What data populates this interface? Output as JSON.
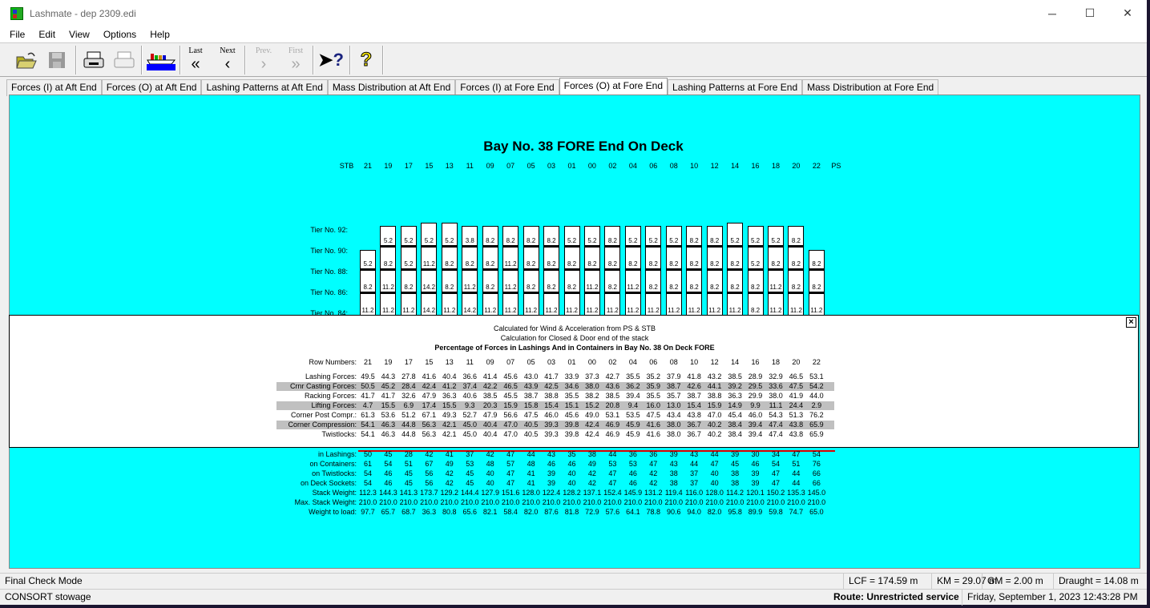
{
  "window": {
    "title": "Lashmate - dep 2309.edi",
    "minimize": "─",
    "maximize": "☐",
    "close": "✕"
  },
  "menu": [
    "File",
    "Edit",
    "View",
    "Options",
    "Help"
  ],
  "toolbar": {
    "open": "open-folder",
    "save": "save",
    "print": "print",
    "print_preview": "print-preview",
    "ship": "ship",
    "last_label": "Last",
    "last_glyph": "«",
    "next_label": "Next",
    "next_glyph": "‹",
    "prev_label": "Prev.",
    "prev_glyph": "›",
    "first_label": "First",
    "first_glyph": "»",
    "whats_this": "?",
    "help": "?"
  },
  "tabs": [
    "Forces (I) at Aft End",
    "Forces (O) at Aft End",
    "Lashing Patterns at Aft End",
    "Mass Distribution at Aft End",
    "Forces (I) at Fore End",
    "Forces (O) at Fore End",
    "Lashing Patterns at Fore End",
    "Mass Distribution at Fore End"
  ],
  "active_tab": 5,
  "bay": {
    "title": "Bay No. 38 FORE End On Deck",
    "stb": "STB",
    "ps": "PS",
    "rows": [
      "21",
      "19",
      "17",
      "15",
      "13",
      "11",
      "09",
      "07",
      "05",
      "03",
      "01",
      "00",
      "02",
      "04",
      "06",
      "08",
      "10",
      "12",
      "14",
      "16",
      "18",
      "20",
      "22"
    ],
    "tiers": [
      "Tier No. 92:",
      "Tier No. 90:",
      "Tier No. 88:",
      "Tier No. 86:",
      "Tier No. 84:"
    ],
    "stacks": [
      [
        null,
        "5.2",
        "8.2",
        "11.2"
      ],
      [
        "5.2",
        "8.2",
        "11.2",
        "11.2"
      ],
      [
        "5.2",
        "5.2",
        "8.2",
        "11.2"
      ],
      [
        "5.2",
        "11.2",
        "14.2",
        "14.2"
      ],
      [
        "5.2",
        "8.2",
        "8.2",
        "11.2"
      ],
      [
        "3.8",
        "8.2",
        "11.2",
        "14.2"
      ],
      [
        "8.2",
        "8.2",
        "8.2",
        "11.2"
      ],
      [
        "8.2",
        "11.2",
        "11.2",
        "11.2"
      ],
      [
        "8.2",
        "8.2",
        "8.2",
        "11.2"
      ],
      [
        "8.2",
        "8.2",
        "8.2",
        "11.2"
      ],
      [
        "5.2",
        "8.2",
        "8.2",
        "11.2"
      ],
      [
        "5.2",
        "8.2",
        "11.2",
        "11.2"
      ],
      [
        "8.2",
        "8.2",
        "8.2",
        "11.2"
      ],
      [
        "5.2",
        "8.2",
        "11.2",
        "11.2"
      ],
      [
        "5.2",
        "8.2",
        "8.2",
        "11.2"
      ],
      [
        "5.2",
        "8.2",
        "8.2",
        "11.2"
      ],
      [
        "8.2",
        "8.2",
        "8.2",
        "11.2"
      ],
      [
        "8.2",
        "8.2",
        "8.2",
        "11.2"
      ],
      [
        "5.2",
        "8.2",
        "8.2",
        "11.2"
      ],
      [
        "5.2",
        "5.2",
        "8.2",
        "8.2"
      ],
      [
        "5.2",
        "8.2",
        "11.2",
        "11.2"
      ],
      [
        "8.2",
        "8.2",
        "8.2",
        "11.2"
      ],
      [
        null,
        "8.2",
        "8.2",
        "11.2"
      ]
    ],
    "lower_table": [
      {
        "label": "in Lashings:",
        "values": [
          "50",
          "45",
          "28",
          "42",
          "41",
          "37",
          "42",
          "47",
          "44",
          "43",
          "35",
          "38",
          "44",
          "36",
          "36",
          "39",
          "43",
          "44",
          "39",
          "30",
          "34",
          "47",
          "54"
        ]
      },
      {
        "label": "on Containers:",
        "values": [
          "61",
          "54",
          "51",
          "67",
          "49",
          "53",
          "48",
          "57",
          "48",
          "46",
          "46",
          "49",
          "53",
          "53",
          "47",
          "43",
          "44",
          "47",
          "45",
          "46",
          "54",
          "51",
          "76"
        ]
      },
      {
        "label": "on Twistlocks:",
        "values": [
          "54",
          "46",
          "45",
          "56",
          "42",
          "45",
          "40",
          "47",
          "41",
          "39",
          "40",
          "42",
          "47",
          "46",
          "42",
          "38",
          "37",
          "40",
          "38",
          "39",
          "47",
          "44",
          "66"
        ]
      },
      {
        "label": "on Deck Sockets:",
        "values": [
          "54",
          "46",
          "45",
          "56",
          "42",
          "45",
          "40",
          "47",
          "41",
          "39",
          "40",
          "42",
          "47",
          "46",
          "42",
          "38",
          "37",
          "40",
          "38",
          "39",
          "47",
          "44",
          "66"
        ]
      },
      {
        "label": "Stack Weight:",
        "values": [
          "112.3",
          "144.3",
          "141.3",
          "173.7",
          "129.2",
          "144.4",
          "127.9",
          "151.6",
          "128.0",
          "122.4",
          "128.2",
          "137.1",
          "152.4",
          "145.9",
          "131.2",
          "119.4",
          "116.0",
          "128.0",
          "114.2",
          "120.1",
          "150.2",
          "135.3",
          "145.0"
        ]
      },
      {
        "label": "Max. Stack Weight:",
        "values": [
          "210.0",
          "210.0",
          "210.0",
          "210.0",
          "210.0",
          "210.0",
          "210.0",
          "210.0",
          "210.0",
          "210.0",
          "210.0",
          "210.0",
          "210.0",
          "210.0",
          "210.0",
          "210.0",
          "210.0",
          "210.0",
          "210.0",
          "210.0",
          "210.0",
          "210.0",
          "210.0"
        ]
      },
      {
        "label": "Weight to load:",
        "values": [
          "97.7",
          "65.7",
          "68.7",
          "36.3",
          "80.8",
          "65.6",
          "82.1",
          "58.4",
          "82.0",
          "87.6",
          "81.8",
          "72.9",
          "57.6",
          "64.1",
          "78.8",
          "90.6",
          "94.0",
          "82.0",
          "95.8",
          "89.9",
          "59.8",
          "74.7",
          "65.0"
        ]
      }
    ]
  },
  "popup": {
    "line1": "Calculated for Wind & Acceleration from PS & STB",
    "line2": "Calculation for Closed & Door end of the stack",
    "heading": "Percentage of Forces in Lashings And in Containers in Bay No. 38 On Deck FORE",
    "row_numbers_label": "Row Numbers:",
    "close": "×",
    "rows": [
      {
        "label": "Lashing Forces:",
        "shaded": false,
        "values": [
          "49.5",
          "44.3",
          "27.8",
          "41.6",
          "40.4",
          "36.6",
          "41.4",
          "45.6",
          "43.0",
          "41.7",
          "33.9",
          "37.3",
          "42.7",
          "35.5",
          "35.2",
          "37.9",
          "41.8",
          "43.2",
          "38.5",
          "28.9",
          "32.9",
          "46.5",
          "53.1"
        ]
      },
      {
        "label": "Crnr Casting Forces:",
        "shaded": true,
        "values": [
          "50.5",
          "45.2",
          "28.4",
          "42.4",
          "41.2",
          "37.4",
          "42.2",
          "46.5",
          "43.9",
          "42.5",
          "34.6",
          "38.0",
          "43.6",
          "36.2",
          "35.9",
          "38.7",
          "42.6",
          "44.1",
          "39.2",
          "29.5",
          "33.6",
          "47.5",
          "54.2"
        ]
      },
      {
        "label": "Racking Forces:",
        "shaded": false,
        "values": [
          "41.7",
          "41.7",
          "32.6",
          "47.9",
          "36.3",
          "40.6",
          "38.5",
          "45.5",
          "38.7",
          "38.8",
          "35.5",
          "38.2",
          "38.5",
          "39.4",
          "35.5",
          "35.7",
          "38.7",
          "38.8",
          "36.3",
          "29.9",
          "38.0",
          "41.9",
          "44.0"
        ]
      },
      {
        "label": "Lifting Forces:",
        "shaded": true,
        "values": [
          "4.7",
          "15.5",
          "6.9",
          "17.4",
          "15.5",
          "9.3",
          "20.3",
          "15.9",
          "15.8",
          "15.4",
          "15.1",
          "15.2",
          "20.8",
          "9.4",
          "16.0",
          "13.0",
          "15.4",
          "15.9",
          "14.9",
          "9.9",
          "11.1",
          "24.4",
          "2.9"
        ]
      },
      {
        "label": "Corner Post Compr.:",
        "shaded": false,
        "values": [
          "61.3",
          "53.6",
          "51.2",
          "67.1",
          "49.3",
          "52.7",
          "47.9",
          "56.6",
          "47.5",
          "46.0",
          "45.6",
          "49.0",
          "53.1",
          "53.5",
          "47.5",
          "43.4",
          "43.8",
          "47.0",
          "45.4",
          "46.0",
          "54.3",
          "51.3",
          "76.2"
        ]
      },
      {
        "label": "Corner Compression:",
        "shaded": true,
        "values": [
          "54.1",
          "46.3",
          "44.8",
          "56.3",
          "42.1",
          "45.0",
          "40.4",
          "47.0",
          "40.5",
          "39.3",
          "39.8",
          "42.4",
          "46.9",
          "45.9",
          "41.6",
          "38.0",
          "36.7",
          "40.2",
          "38.4",
          "39.4",
          "47.4",
          "43.8",
          "65.9"
        ]
      },
      {
        "label": "Twistlocks:",
        "shaded": false,
        "values": [
          "54.1",
          "46.3",
          "44.8",
          "56.3",
          "42.1",
          "45.0",
          "40.4",
          "47.0",
          "40.5",
          "39.3",
          "39.8",
          "42.4",
          "46.9",
          "45.9",
          "41.6",
          "38.0",
          "36.7",
          "40.2",
          "38.4",
          "39.4",
          "47.4",
          "43.8",
          "65.9"
        ]
      }
    ]
  },
  "status": {
    "mode": "Final Check Mode",
    "lcf": "LCF = 174.59 m",
    "km": "KM =  29.07 m",
    "gm": "GM =   2.00 m",
    "draught": "Draught =  14.08 m",
    "app": "CONSORT stowage",
    "route": "Route: Unrestricted service",
    "datetime": "Friday, September 1, 2023 12:43:28 PM"
  },
  "colors": {
    "canvas": "#00ffff",
    "shaded_row": "#c0c0c0"
  }
}
